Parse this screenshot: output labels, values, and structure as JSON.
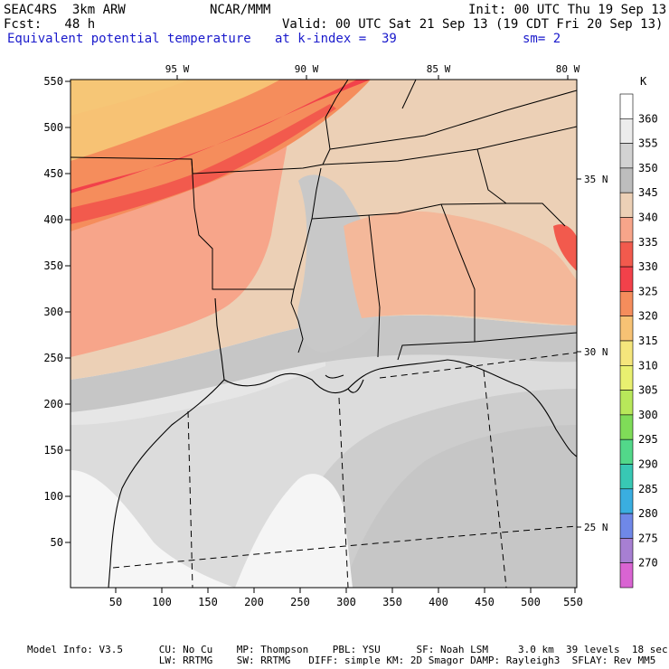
{
  "header": {
    "left_line1": "SEAC4RS  3km ARW",
    "center_line1": "NCAR/MMM",
    "right_line1": "Init: 00 UTC Thu 19 Sep 13",
    "left_line2": "Fcst:   48 h",
    "right_line2": "Valid: 00 UTC Sat 21 Sep 13 (19 CDT Fri 20 Sep 13)",
    "field_name": "Equivalent potential temperature",
    "field_level": "at k-index =  39",
    "smoothing": "sm= 2"
  },
  "map": {
    "x_ticks": [
      "50",
      "100",
      "150",
      "200",
      "250",
      "300",
      "350",
      "400",
      "450",
      "500",
      "550"
    ],
    "y_ticks": [
      "550",
      "500",
      "450",
      "400",
      "350",
      "300",
      "250",
      "200",
      "150",
      "100",
      "50"
    ],
    "lon_labels": [
      "95 W",
      "90 W",
      "85 W",
      "80 W"
    ],
    "lat_labels": [
      "35 N",
      "30 N",
      "25 N"
    ]
  },
  "legend": {
    "unit": "K",
    "levels": [
      {
        "label": "360",
        "color": "#ffffff"
      },
      {
        "label": "355",
        "color": "#ececec"
      },
      {
        "label": "350",
        "color": "#d2d2d2"
      },
      {
        "label": "345",
        "color": "#bdbdbd"
      },
      {
        "label": "340",
        "color": "#ecd0b6"
      },
      {
        "label": "335",
        "color": "#f7a58a"
      },
      {
        "label": "330",
        "color": "#f25a4d"
      },
      {
        "label": "325",
        "color": "#f2414a"
      },
      {
        "label": "320",
        "color": "#f58d5c"
      },
      {
        "label": "315",
        "color": "#f7c274"
      },
      {
        "label": "310",
        "color": "#f5e67c"
      },
      {
        "label": "305",
        "color": "#e9f070"
      },
      {
        "label": "300",
        "color": "#b8e85a"
      },
      {
        "label": "295",
        "color": "#7fdc58"
      },
      {
        "label": "290",
        "color": "#52d88a"
      },
      {
        "label": "285",
        "color": "#38c8b4"
      },
      {
        "label": "280",
        "color": "#3aaee0"
      },
      {
        "label": "275",
        "color": "#6f88e8"
      },
      {
        "label": "270",
        "color": "#a77fd2"
      },
      {
        "label": "",
        "color": "#d964d2"
      }
    ]
  },
  "footer": {
    "line1": "Model Info: V3.5      CU: No Cu    MP: Thompson    PBL: YSU      SF: Noah LSM     3.0 km  39 levels  18 sec",
    "line2": "                      LW: RRTMG    SW: RRTMG   DIFF: simple KM: 2D Smagor DAMP: Rayleigh3  SFLAY: Rev MM5"
  }
}
